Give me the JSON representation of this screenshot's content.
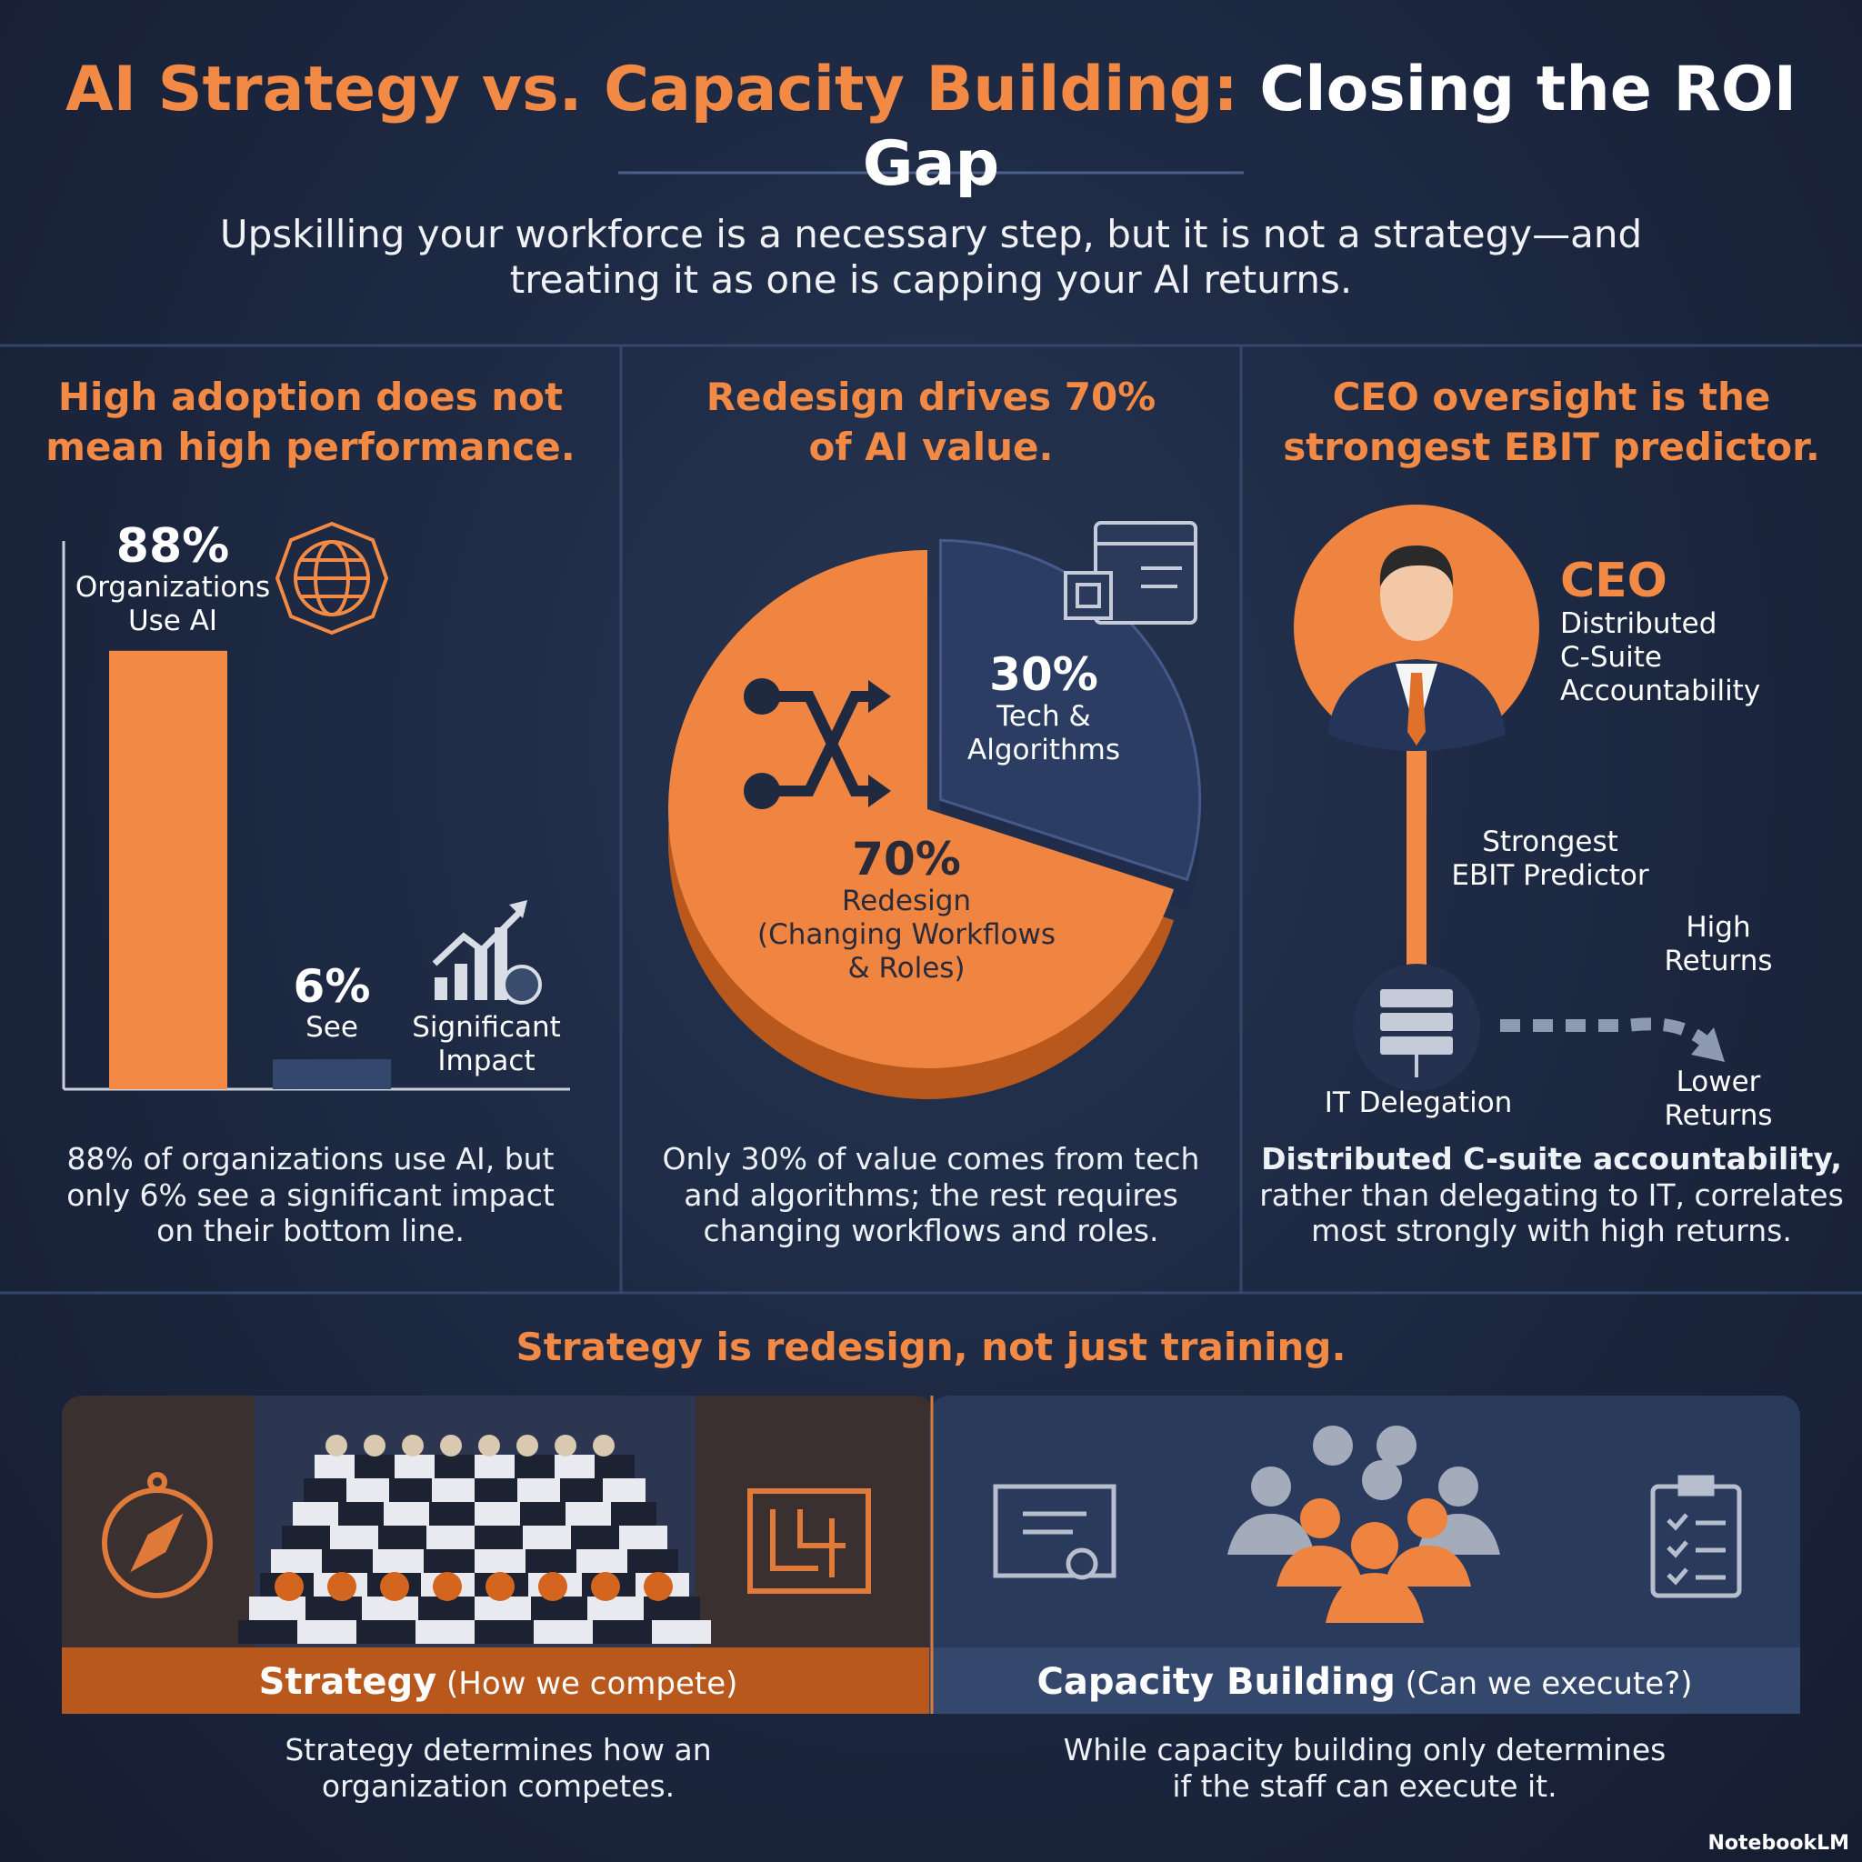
{
  "header": {
    "title_accent": "AI Strategy vs. Capacity Building:",
    "title_rest": "Closing the ROI Gap",
    "subtitle": "Upskilling your workforce is a necessary step, but it is not a strategy—and\ntreating it as one is capping your AI returns."
  },
  "panels": [
    {
      "heading": "High adoption does not\nmean high performance.",
      "bars": [
        {
          "value": 88,
          "label": "88%",
          "caption": "Organizations\nUse AI"
        },
        {
          "value": 6,
          "label": "6%",
          "caption": "See"
        }
      ],
      "icon_caption": "Significant\nImpact",
      "caption": "88% of organizations use AI, but\nonly 6% see a significant impact\non their bottom line."
    },
    {
      "heading": "Redesign drives 70%\nof AI value.",
      "slices": [
        {
          "value": 30,
          "label": "30%",
          "caption": "Tech &\nAlgorithms"
        },
        {
          "value": 70,
          "label": "70%",
          "caption": "Redesign\n(Changing Workflows\n& Roles)"
        }
      ],
      "caption": "Only 30% of value comes from tech\nand algorithms; the rest requires\nchanging workflows and roles."
    },
    {
      "heading": "CEO oversight is the\nstrongest EBIT predictor.",
      "ceo_title": "CEO",
      "ceo_caption": "Distributed\nC-Suite\nAccountability",
      "link_label": "Strongest\nEBIT Predictor",
      "delegation_label": "IT Delegation",
      "high_label": "High\nReturns",
      "low_label": "Lower\nReturns",
      "caption_bold": "Distributed C-suite accountability,",
      "caption_rest": "rather than delegating to IT, correlates\nmost strongly with high returns."
    }
  ],
  "comparison": {
    "heading": "Strategy is redesign, not just training.",
    "strategy": {
      "name": "Strategy",
      "note": "(How we compete)",
      "caption": "Strategy determines how an\norganization competes."
    },
    "capacity": {
      "name": "Capacity Building",
      "note": "(Can we execute?)",
      "caption": "While capacity building only determines\nif the staff can execute it."
    }
  },
  "footer": {
    "brand": "NotebookLM"
  }
}
